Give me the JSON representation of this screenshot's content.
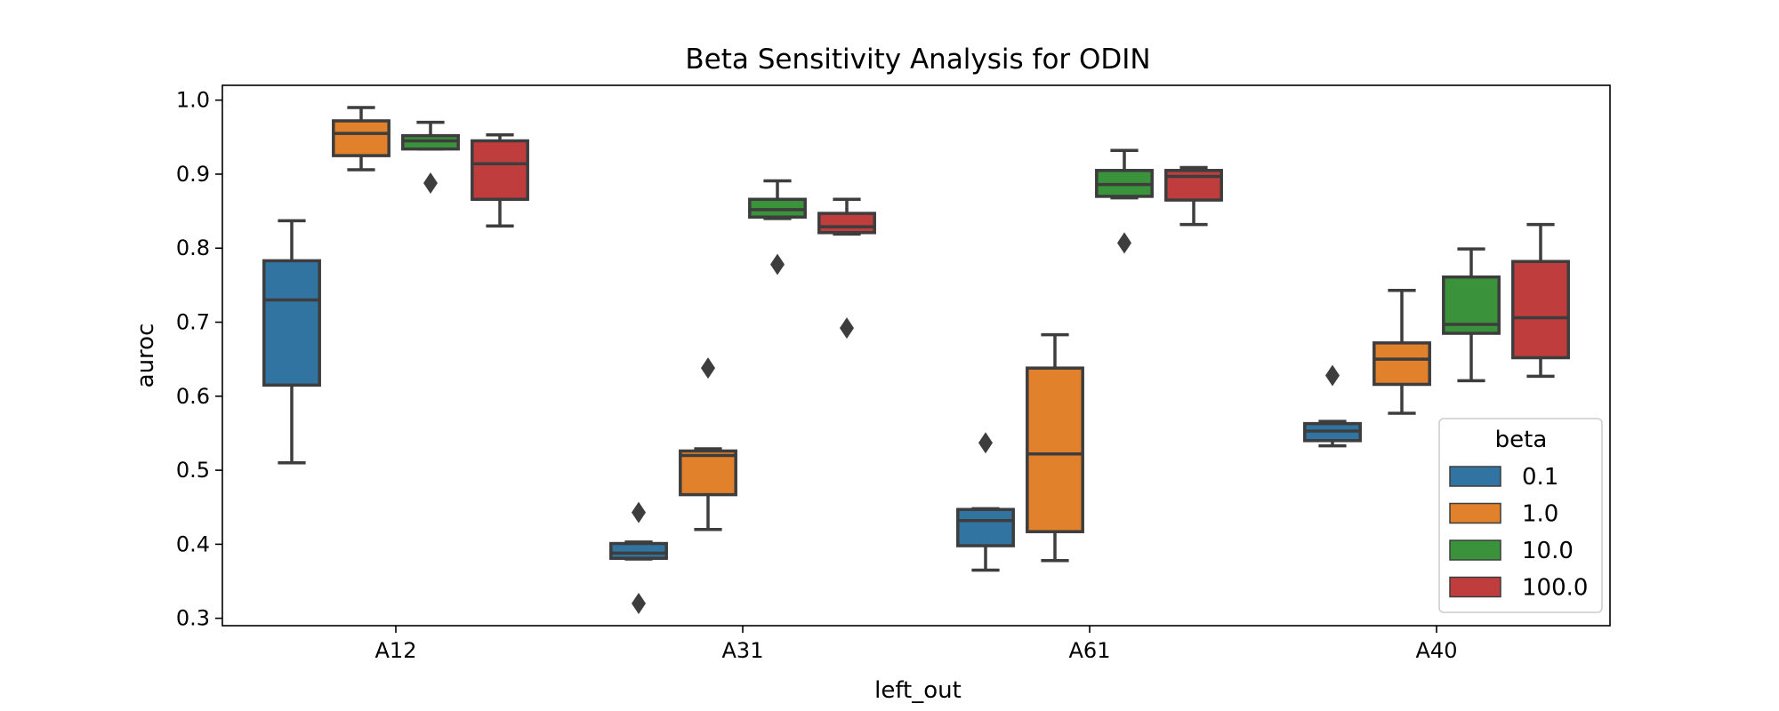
{
  "chart_data": {
    "type": "box",
    "title": "Beta Sensitivity Analysis for ODIN",
    "xlabel": "left_out",
    "ylabel": "auroc",
    "ylim": [
      0.29,
      1.02
    ],
    "yticks": [
      "0.3",
      "0.4",
      "0.5",
      "0.6",
      "0.7",
      "0.8",
      "0.9",
      "1.0"
    ],
    "grid": false,
    "categories": [
      "A12",
      "A31",
      "A61",
      "A40"
    ],
    "legend": {
      "title": "beta",
      "placement": "lower-right"
    },
    "series": [
      {
        "name": "0.1",
        "color": "#3274a1",
        "boxes": [
          {
            "whisker_low": 0.51,
            "q1": 0.615,
            "median": 0.73,
            "q3": 0.783,
            "whisker_high": 0.837,
            "outliers": []
          },
          {
            "whisker_low": 0.38,
            "q1": 0.381,
            "median": 0.388,
            "q3": 0.401,
            "whisker_high": 0.403,
            "outliers": [
              0.443,
              0.32
            ]
          },
          {
            "whisker_low": 0.365,
            "q1": 0.398,
            "median": 0.432,
            "q3": 0.447,
            "whisker_high": 0.448,
            "outliers": [
              0.537
            ]
          },
          {
            "whisker_low": 0.533,
            "q1": 0.54,
            "median": 0.553,
            "q3": 0.563,
            "whisker_high": 0.566,
            "outliers": [
              0.628
            ]
          }
        ]
      },
      {
        "name": "1.0",
        "color": "#e1812c",
        "boxes": [
          {
            "whisker_low": 0.906,
            "q1": 0.925,
            "median": 0.955,
            "q3": 0.972,
            "whisker_high": 0.99,
            "outliers": []
          },
          {
            "whisker_low": 0.42,
            "q1": 0.467,
            "median": 0.52,
            "q3": 0.526,
            "whisker_high": 0.529,
            "outliers": [
              0.638
            ]
          },
          {
            "whisker_low": 0.378,
            "q1": 0.417,
            "median": 0.522,
            "q3": 0.638,
            "whisker_high": 0.683,
            "outliers": []
          },
          {
            "whisker_low": 0.577,
            "q1": 0.616,
            "median": 0.65,
            "q3": 0.672,
            "whisker_high": 0.743,
            "outliers": []
          }
        ]
      },
      {
        "name": "10.0",
        "color": "#3a923a",
        "boxes": [
          {
            "whisker_low": 0.934,
            "q1": 0.934,
            "median": 0.945,
            "q3": 0.952,
            "whisker_high": 0.97,
            "outliers": [
              0.888
            ]
          },
          {
            "whisker_low": 0.84,
            "q1": 0.842,
            "median": 0.852,
            "q3": 0.866,
            "whisker_high": 0.891,
            "outliers": [
              0.778
            ]
          },
          {
            "whisker_low": 0.868,
            "q1": 0.87,
            "median": 0.886,
            "q3": 0.905,
            "whisker_high": 0.932,
            "outliers": [
              0.807
            ]
          },
          {
            "whisker_low": 0.621,
            "q1": 0.685,
            "median": 0.697,
            "q3": 0.761,
            "whisker_high": 0.799,
            "outliers": []
          }
        ]
      },
      {
        "name": "100.0",
        "color": "#c03d3e",
        "boxes": [
          {
            "whisker_low": 0.83,
            "q1": 0.866,
            "median": 0.914,
            "q3": 0.945,
            "whisker_high": 0.953,
            "outliers": []
          },
          {
            "whisker_low": 0.819,
            "q1": 0.821,
            "median": 0.829,
            "q3": 0.847,
            "whisker_high": 0.866,
            "outliers": [
              0.692
            ]
          },
          {
            "whisker_low": 0.832,
            "q1": 0.865,
            "median": 0.897,
            "q3": 0.905,
            "whisker_high": 0.909,
            "outliers": []
          },
          {
            "whisker_low": 0.627,
            "q1": 0.652,
            "median": 0.706,
            "q3": 0.782,
            "whisker_high": 0.832,
            "outliers": []
          }
        ]
      }
    ]
  }
}
